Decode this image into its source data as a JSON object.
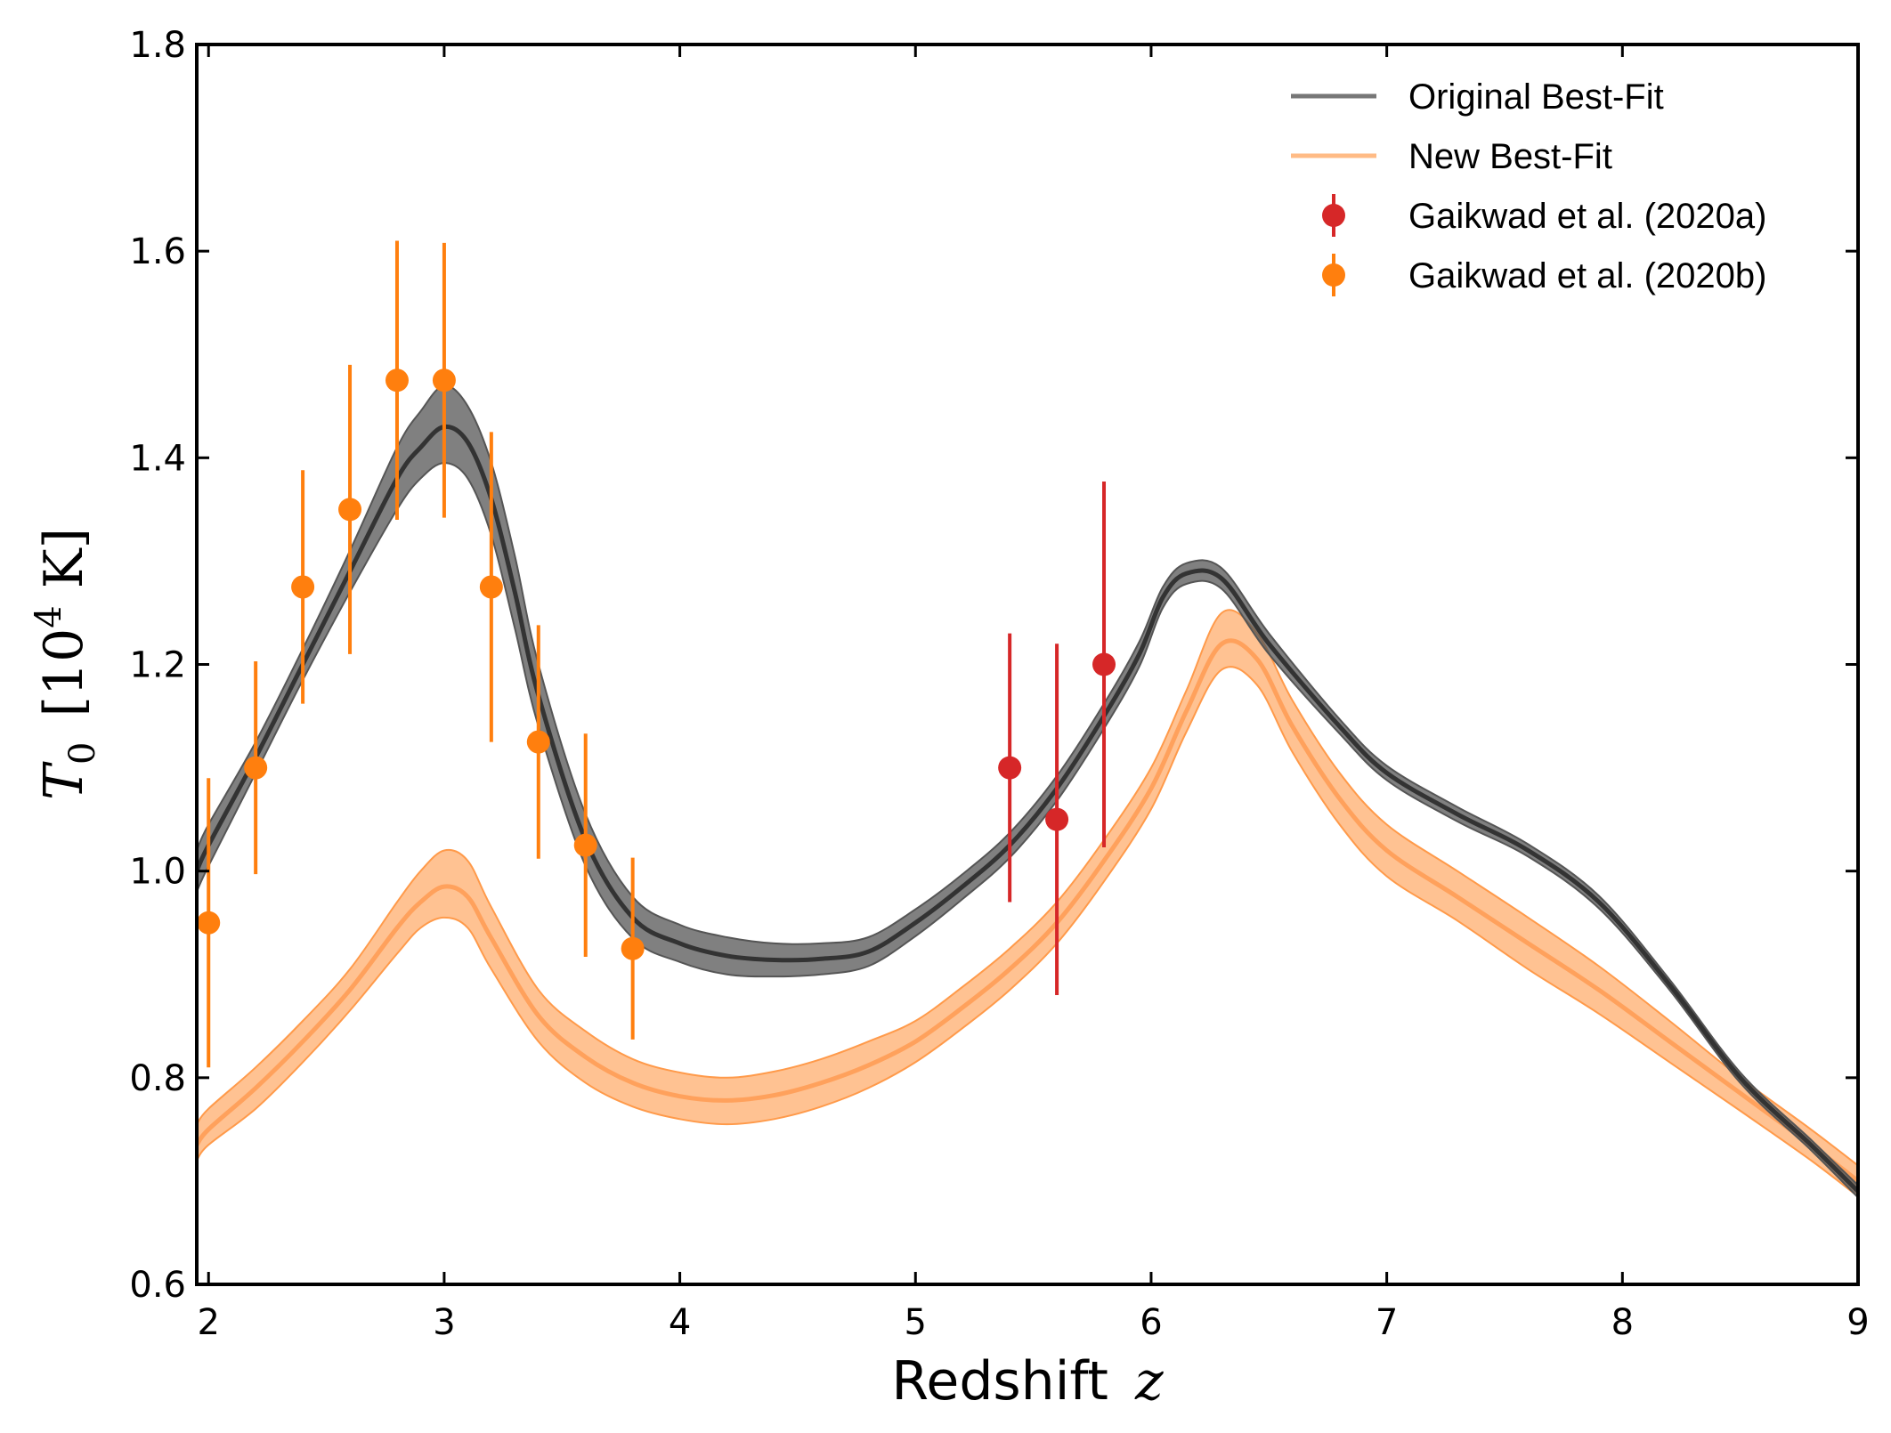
{
  "chart_data": {
    "type": "line",
    "xlabel": {
      "prefix": "Redshift",
      "symbol": "z"
    },
    "ylabel": {
      "symbol": "T",
      "sub": "0",
      "unit_open": "[10",
      "unit_exp": "4",
      "unit_close": " K]"
    },
    "xlim": [
      1.95,
      9.0
    ],
    "ylim": [
      0.6,
      1.8
    ],
    "xticks": [
      2,
      3,
      4,
      5,
      6,
      7,
      8,
      9
    ],
    "yticks": [
      0.6,
      0.8,
      1.0,
      1.2,
      1.4,
      1.6,
      1.8
    ],
    "xtick_labels": [
      "2",
      "3",
      "4",
      "5",
      "6",
      "7",
      "8",
      "9"
    ],
    "ytick_labels": [
      "0.6",
      "0.8",
      "1.0",
      "1.2",
      "1.4",
      "1.6",
      "1.8"
    ],
    "grid": false,
    "legend_position": "top-right",
    "series": [
      {
        "name": "Original Best-Fit",
        "kind": "line_band",
        "color": "#333333",
        "band_color": "#555555",
        "x": [
          1.95,
          2.0,
          2.2,
          2.4,
          2.6,
          2.8,
          2.9,
          3.0,
          3.1,
          3.2,
          3.3,
          3.4,
          3.6,
          3.8,
          4.0,
          4.2,
          4.4,
          4.6,
          4.8,
          5.0,
          5.2,
          5.4,
          5.6,
          5.8,
          5.95,
          6.05,
          6.15,
          6.3,
          6.5,
          6.8,
          7.0,
          7.3,
          7.6,
          7.9,
          8.2,
          8.5,
          8.8,
          9.0
        ],
        "y": [
          1.0,
          1.025,
          1.11,
          1.2,
          1.29,
          1.38,
          1.41,
          1.43,
          1.415,
          1.36,
          1.27,
          1.17,
          1.03,
          0.955,
          0.93,
          0.918,
          0.914,
          0.915,
          0.922,
          0.95,
          0.985,
          1.025,
          1.08,
          1.15,
          1.21,
          1.265,
          1.288,
          1.283,
          1.22,
          1.14,
          1.095,
          1.055,
          1.02,
          0.97,
          0.89,
          0.8,
          0.735,
          0.69
        ],
        "y_low": [
          0.98,
          1.005,
          1.095,
          1.185,
          1.27,
          1.35,
          1.38,
          1.395,
          1.38,
          1.325,
          1.235,
          1.14,
          1.005,
          0.935,
          0.912,
          0.9,
          0.898,
          0.9,
          0.908,
          0.937,
          0.973,
          1.013,
          1.068,
          1.138,
          1.198,
          1.255,
          1.278,
          1.273,
          1.21,
          1.133,
          1.088,
          1.048,
          1.014,
          0.964,
          0.885,
          0.795,
          0.73,
          0.684
        ],
        "y_high": [
          1.02,
          1.045,
          1.125,
          1.215,
          1.31,
          1.41,
          1.445,
          1.47,
          1.45,
          1.395,
          1.305,
          1.2,
          1.055,
          0.975,
          0.948,
          0.936,
          0.93,
          0.93,
          0.936,
          0.963,
          0.997,
          1.037,
          1.092,
          1.162,
          1.222,
          1.275,
          1.298,
          1.293,
          1.23,
          1.147,
          1.102,
          1.062,
          1.026,
          0.976,
          0.895,
          0.805,
          0.74,
          0.696
        ]
      },
      {
        "name": "New Best-Fit",
        "kind": "line_band",
        "color": "#ffa15c",
        "band_color": "#ff9a4a",
        "x": [
          1.95,
          2.0,
          2.2,
          2.4,
          2.6,
          2.8,
          2.9,
          3.0,
          3.1,
          3.2,
          3.4,
          3.6,
          3.8,
          4.0,
          4.2,
          4.4,
          4.6,
          4.8,
          5.0,
          5.2,
          5.4,
          5.6,
          5.8,
          6.0,
          6.15,
          6.3,
          6.45,
          6.6,
          6.8,
          7.0,
          7.3,
          7.6,
          7.9,
          8.2,
          8.5,
          8.8,
          9.0
        ],
        "y": [
          0.735,
          0.75,
          0.79,
          0.835,
          0.885,
          0.945,
          0.97,
          0.985,
          0.975,
          0.935,
          0.86,
          0.82,
          0.795,
          0.782,
          0.778,
          0.783,
          0.795,
          0.812,
          0.835,
          0.868,
          0.905,
          0.95,
          1.01,
          1.08,
          1.155,
          1.22,
          1.205,
          1.14,
          1.07,
          1.02,
          0.975,
          0.93,
          0.885,
          0.835,
          0.785,
          0.735,
          0.7
        ],
        "y_low": [
          0.72,
          0.735,
          0.77,
          0.815,
          0.865,
          0.92,
          0.945,
          0.955,
          0.945,
          0.905,
          0.835,
          0.795,
          0.772,
          0.76,
          0.755,
          0.76,
          0.772,
          0.79,
          0.815,
          0.848,
          0.885,
          0.93,
          0.99,
          1.06,
          1.135,
          1.195,
          1.18,
          1.115,
          1.045,
          0.995,
          0.952,
          0.905,
          0.862,
          0.815,
          0.768,
          0.72,
          0.685
        ],
        "y_high": [
          0.755,
          0.77,
          0.81,
          0.855,
          0.905,
          0.97,
          1.0,
          1.02,
          1.01,
          0.965,
          0.885,
          0.845,
          0.818,
          0.805,
          0.8,
          0.806,
          0.818,
          0.835,
          0.855,
          0.888,
          0.925,
          0.97,
          1.03,
          1.1,
          1.175,
          1.25,
          1.23,
          1.165,
          1.095,
          1.045,
          1.0,
          0.955,
          0.908,
          0.855,
          0.8,
          0.75,
          0.715
        ]
      },
      {
        "name": "Gaikwad et al. (2020a)",
        "kind": "errorbar",
        "color": "#d62728",
        "x": [
          5.4,
          5.6,
          5.8
        ],
        "y": [
          1.1,
          1.05,
          1.2
        ],
        "yerr": [
          0.13,
          0.17,
          0.177
        ]
      },
      {
        "name": "Gaikwad et al. (2020b)",
        "kind": "errorbar",
        "color": "#ff7f0e",
        "x": [
          2.0,
          2.2,
          2.4,
          2.6,
          2.8,
          3.0,
          3.2,
          3.4,
          3.6,
          3.8
        ],
        "y": [
          0.95,
          1.1,
          1.275,
          1.35,
          1.475,
          1.475,
          1.275,
          1.125,
          1.025,
          0.925
        ],
        "yerr": [
          0.14,
          0.103,
          0.113,
          0.14,
          0.135,
          0.133,
          0.15,
          0.113,
          0.108,
          0.088
        ]
      }
    ]
  }
}
